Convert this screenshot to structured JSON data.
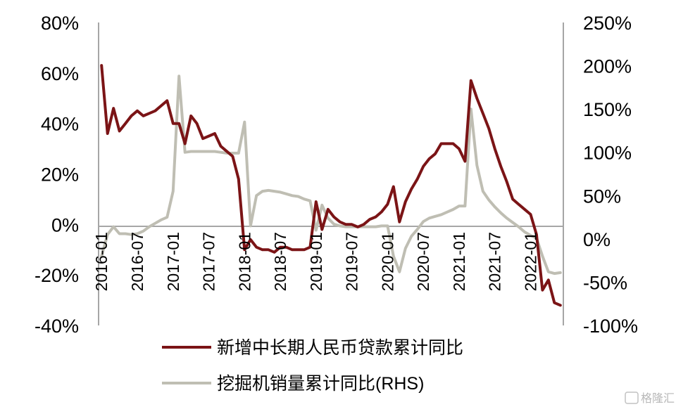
{
  "chart_data": {
    "type": "line",
    "left_axis": {
      "ylim": [
        -40,
        80
      ],
      "ticks": [
        80,
        60,
        40,
        20,
        0,
        -20,
        -40
      ],
      "tick_labels": [
        "80%",
        "60%",
        "40%",
        "20%",
        "0%",
        "-20%",
        "-40%"
      ]
    },
    "right_axis": {
      "ylim": [
        -100,
        250
      ],
      "ticks": [
        250,
        200,
        150,
        100,
        50,
        0,
        -50,
        -100
      ],
      "tick_labels": [
        "250%",
        "200%",
        "150%",
        "100%",
        "50%",
        "0%",
        "-50%",
        "-100%"
      ]
    },
    "x_tick_labels": [
      "2016-01",
      "2016-07",
      "2017-01",
      "2017-07",
      "2018-01",
      "2018-07",
      "2019-01",
      "2019-07",
      "2020-01",
      "2020-07",
      "2021-01",
      "2021-07",
      "2022-01"
    ],
    "x_tick_months": [
      0,
      6,
      12,
      18,
      24,
      30,
      36,
      42,
      48,
      54,
      60,
      66,
      72
    ],
    "series": [
      {
        "name": "新增中长期人民币贷款累计同比",
        "color": "#7b1416",
        "axis": "left",
        "points": [
          [
            0,
            63
          ],
          [
            1,
            36
          ],
          [
            2,
            46
          ],
          [
            3,
            37
          ],
          [
            4,
            40
          ],
          [
            5,
            43
          ],
          [
            6,
            45
          ],
          [
            7,
            43
          ],
          [
            8,
            44
          ],
          [
            9,
            45
          ],
          [
            10,
            47
          ],
          [
            11,
            49
          ],
          [
            12,
            40
          ],
          [
            13,
            40
          ],
          [
            14,
            32
          ],
          [
            15,
            43
          ],
          [
            16,
            40
          ],
          [
            17,
            34
          ],
          [
            18,
            35
          ],
          [
            19,
            36
          ],
          [
            20,
            31
          ],
          [
            21,
            29
          ],
          [
            22,
            27
          ],
          [
            23,
            18
          ],
          [
            24,
            -10
          ],
          [
            25,
            -6
          ],
          [
            26,
            -9
          ],
          [
            27,
            -10
          ],
          [
            28,
            -10
          ],
          [
            29,
            -11
          ],
          [
            30,
            -9
          ],
          [
            31,
            -9
          ],
          [
            32,
            -10
          ],
          [
            33,
            -10
          ],
          [
            34,
            -10
          ],
          [
            35,
            -9
          ],
          [
            36,
            9
          ],
          [
            37,
            -2
          ],
          [
            38,
            6
          ],
          [
            39,
            3
          ],
          [
            40,
            1
          ],
          [
            41,
            0
          ],
          [
            42,
            0
          ],
          [
            43,
            -1
          ],
          [
            44,
            0
          ],
          [
            45,
            2
          ],
          [
            46,
            3
          ],
          [
            47,
            5
          ],
          [
            48,
            8
          ],
          [
            49,
            15
          ],
          [
            50,
            1
          ],
          [
            51,
            9
          ],
          [
            52,
            14
          ],
          [
            53,
            18
          ],
          [
            54,
            23
          ],
          [
            55,
            26
          ],
          [
            56,
            28
          ],
          [
            57,
            32
          ],
          [
            58,
            32
          ],
          [
            59,
            32
          ],
          [
            60,
            30
          ],
          [
            61,
            25
          ],
          [
            62,
            57
          ],
          [
            63,
            50
          ],
          [
            64,
            44
          ],
          [
            65,
            38
          ],
          [
            66,
            30
          ],
          [
            67,
            23
          ],
          [
            68,
            17
          ],
          [
            69,
            10
          ],
          [
            70,
            8
          ],
          [
            71,
            6
          ],
          [
            72,
            4
          ],
          [
            73,
            -4
          ],
          [
            74,
            -26
          ],
          [
            75,
            -22
          ],
          [
            76,
            -31
          ],
          [
            77,
            -32
          ]
        ]
      },
      {
        "name": "挖掘机销量累计同比(RHS)",
        "color": "#bfbeb3",
        "axis": "right",
        "points": [
          [
            0,
            -20
          ],
          [
            1,
            5
          ],
          [
            2,
            14
          ],
          [
            3,
            6
          ],
          [
            4,
            6
          ],
          [
            5,
            5
          ],
          [
            6,
            6
          ],
          [
            7,
            9
          ],
          [
            8,
            14
          ],
          [
            9,
            18
          ],
          [
            10,
            22
          ],
          [
            11,
            25
          ],
          [
            12,
            55
          ],
          [
            13,
            188
          ],
          [
            14,
            100
          ],
          [
            15,
            101
          ],
          [
            16,
            101
          ],
          [
            17,
            101
          ],
          [
            18,
            101
          ],
          [
            19,
            101
          ],
          [
            20,
            100
          ],
          [
            21,
            99
          ],
          [
            22,
            99
          ],
          [
            23,
            99
          ],
          [
            24,
            135
          ],
          [
            25,
            15
          ],
          [
            26,
            50
          ],
          [
            27,
            55
          ],
          [
            28,
            56
          ],
          [
            29,
            55
          ],
          [
            30,
            54
          ],
          [
            31,
            52
          ],
          [
            32,
            50
          ],
          [
            33,
            49
          ],
          [
            34,
            46
          ],
          [
            35,
            44
          ],
          [
            36,
            10
          ],
          [
            37,
            39
          ],
          [
            38,
            24
          ],
          [
            39,
            17
          ],
          [
            40,
            15
          ],
          [
            41,
            14
          ],
          [
            42,
            14
          ],
          [
            43,
            14
          ],
          [
            44,
            14
          ],
          [
            45,
            14
          ],
          [
            46,
            14
          ],
          [
            47,
            15
          ],
          [
            48,
            15
          ],
          [
            49,
            -20
          ],
          [
            50,
            -38
          ],
          [
            51,
            -11
          ],
          [
            52,
            3
          ],
          [
            53,
            11
          ],
          [
            54,
            20
          ],
          [
            55,
            24
          ],
          [
            56,
            26
          ],
          [
            57,
            28
          ],
          [
            58,
            31
          ],
          [
            59,
            34
          ],
          [
            60,
            38
          ],
          [
            61,
            38
          ],
          [
            62,
            150
          ],
          [
            63,
            85
          ],
          [
            64,
            55
          ],
          [
            65,
            45
          ],
          [
            66,
            37
          ],
          [
            67,
            30
          ],
          [
            68,
            24
          ],
          [
            69,
            19
          ],
          [
            70,
            14
          ],
          [
            71,
            8
          ],
          [
            72,
            4
          ],
          [
            73,
            1
          ],
          [
            74,
            -20
          ],
          [
            75,
            -38
          ],
          [
            76,
            -40
          ],
          [
            77,
            -39
          ]
        ]
      }
    ],
    "legend_placement": "bottom-center",
    "grid": false
  },
  "watermark_text": "格隆汇"
}
